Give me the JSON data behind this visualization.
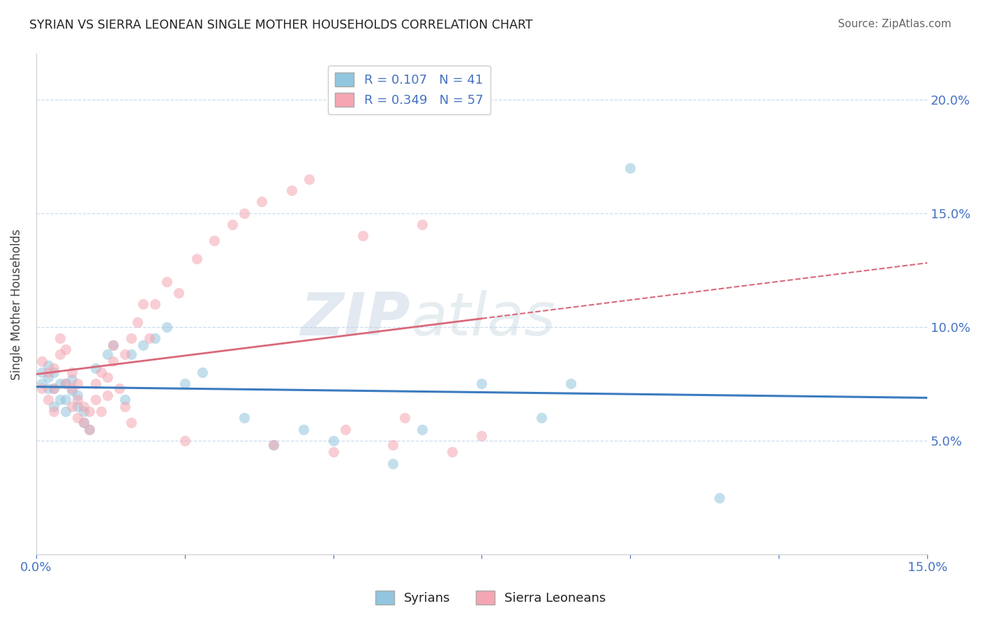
{
  "title": "SYRIAN VS SIERRA LEONEAN SINGLE MOTHER HOUSEHOLDS CORRELATION CHART",
  "source": "Source: ZipAtlas.com",
  "ylabel": "Single Mother Households",
  "xlim": [
    0.0,
    0.15
  ],
  "ylim": [
    0.0,
    0.22
  ],
  "yticks": [
    0.0,
    0.05,
    0.1,
    0.15,
    0.2
  ],
  "ytick_labels_right": [
    "",
    "5.0%",
    "10.0%",
    "15.0%",
    "20.0%"
  ],
  "xtick_labels": [
    "0.0%",
    "",
    "",
    "",
    "",
    "",
    "15.0%"
  ],
  "watermark_zip": "ZIP",
  "watermark_atlas": "atlas",
  "syrians_R": 0.107,
  "syrians_N": 41,
  "sierraleoneans_R": 0.349,
  "sierraleoneans_N": 57,
  "syrian_color": "#92c5de",
  "sierraleone_color": "#f4a6b2",
  "syrian_line_color": "#3b7bbf",
  "sierraleone_line_color": "#d9687a",
  "grid_color": "#ccddee",
  "syrians_x": [
    0.001,
    0.001,
    0.002,
    0.002,
    0.002,
    0.003,
    0.003,
    0.003,
    0.004,
    0.004,
    0.005,
    0.005,
    0.005,
    0.006,
    0.006,
    0.007,
    0.007,
    0.008,
    0.008,
    0.009,
    0.01,
    0.012,
    0.013,
    0.015,
    0.016,
    0.018,
    0.02,
    0.022,
    0.025,
    0.028,
    0.035,
    0.04,
    0.045,
    0.05,
    0.06,
    0.065,
    0.075,
    0.085,
    0.09,
    0.1,
    0.115
  ],
  "syrians_y": [
    0.075,
    0.08,
    0.073,
    0.078,
    0.083,
    0.065,
    0.073,
    0.08,
    0.068,
    0.075,
    0.063,
    0.068,
    0.075,
    0.072,
    0.077,
    0.065,
    0.07,
    0.058,
    0.063,
    0.055,
    0.082,
    0.088,
    0.092,
    0.068,
    0.088,
    0.092,
    0.095,
    0.1,
    0.075,
    0.08,
    0.06,
    0.048,
    0.055,
    0.05,
    0.04,
    0.055,
    0.075,
    0.06,
    0.075,
    0.17,
    0.025
  ],
  "sierraleoneans_x": [
    0.001,
    0.001,
    0.002,
    0.002,
    0.003,
    0.003,
    0.003,
    0.004,
    0.004,
    0.005,
    0.005,
    0.006,
    0.006,
    0.006,
    0.007,
    0.007,
    0.007,
    0.008,
    0.008,
    0.009,
    0.009,
    0.01,
    0.01,
    0.011,
    0.011,
    0.012,
    0.012,
    0.013,
    0.013,
    0.014,
    0.015,
    0.015,
    0.016,
    0.016,
    0.017,
    0.018,
    0.019,
    0.02,
    0.022,
    0.024,
    0.025,
    0.027,
    0.03,
    0.033,
    0.035,
    0.038,
    0.04,
    0.043,
    0.046,
    0.05,
    0.052,
    0.055,
    0.06,
    0.062,
    0.065,
    0.07,
    0.075
  ],
  "sierraleoneans_y": [
    0.073,
    0.085,
    0.068,
    0.08,
    0.063,
    0.073,
    0.082,
    0.088,
    0.095,
    0.075,
    0.09,
    0.065,
    0.073,
    0.08,
    0.06,
    0.068,
    0.075,
    0.058,
    0.065,
    0.055,
    0.063,
    0.068,
    0.075,
    0.063,
    0.08,
    0.07,
    0.078,
    0.085,
    0.092,
    0.073,
    0.065,
    0.088,
    0.058,
    0.095,
    0.102,
    0.11,
    0.095,
    0.11,
    0.12,
    0.115,
    0.05,
    0.13,
    0.138,
    0.145,
    0.15,
    0.155,
    0.048,
    0.16,
    0.165,
    0.045,
    0.055,
    0.14,
    0.048,
    0.06,
    0.145,
    0.045,
    0.052
  ]
}
